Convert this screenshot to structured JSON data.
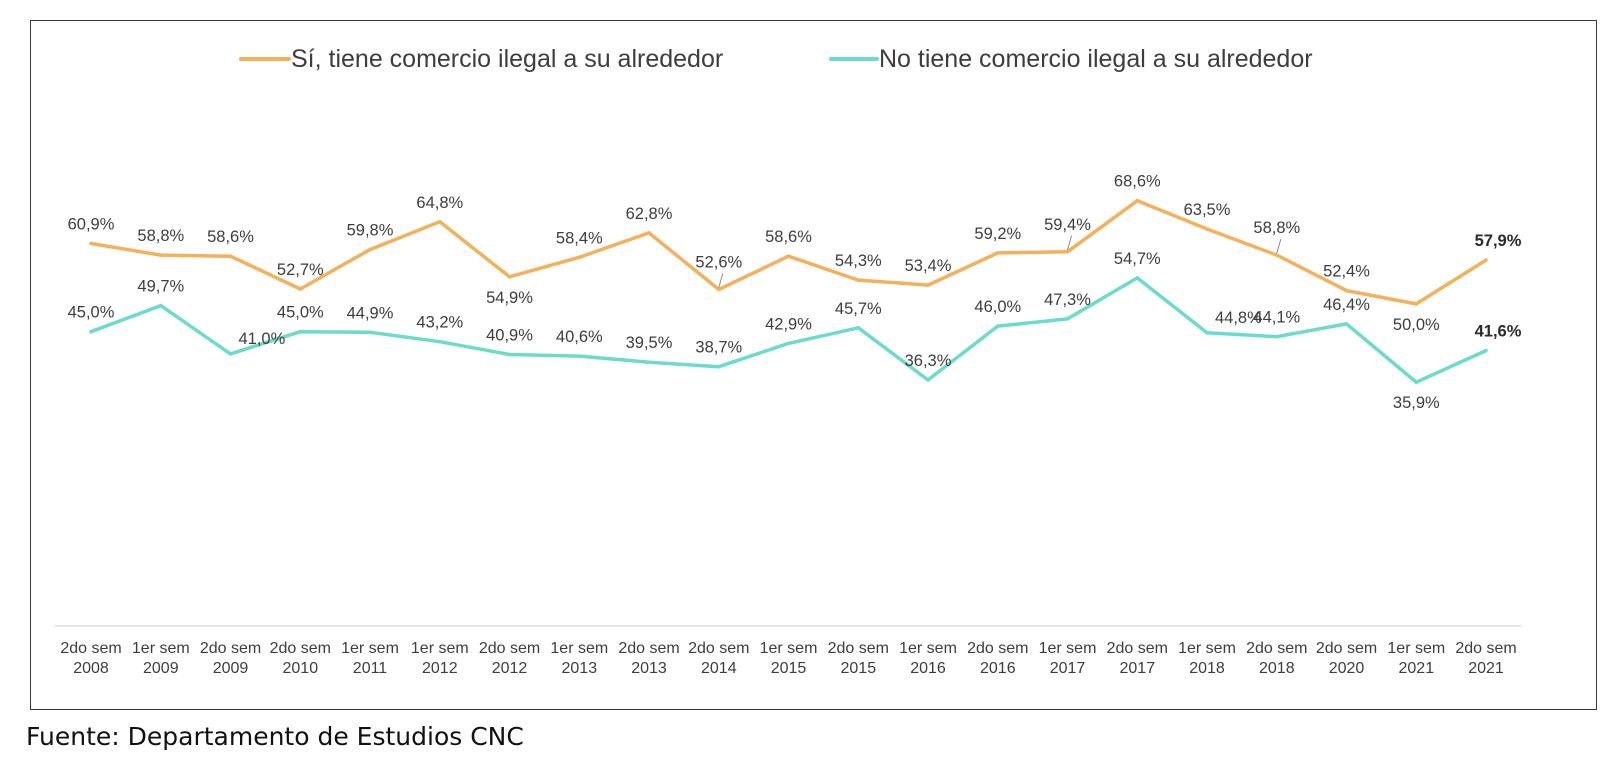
{
  "chart_data": {
    "type": "line",
    "categories": [
      [
        "2do sem",
        "2008"
      ],
      [
        "1er sem",
        "2009"
      ],
      [
        "2do sem",
        "2009"
      ],
      [
        "2do sem",
        "2010"
      ],
      [
        "1er sem",
        "2011"
      ],
      [
        "1er sem",
        "2012"
      ],
      [
        "2do sem",
        "2012"
      ],
      [
        "1er sem",
        "2013"
      ],
      [
        "2do sem",
        "2013"
      ],
      [
        "2do sem",
        "2014"
      ],
      [
        "1er sem",
        "2015"
      ],
      [
        "2do sem",
        "2015"
      ],
      [
        "1er sem",
        "2016"
      ],
      [
        "2do sem",
        "2016"
      ],
      [
        "1er sem",
        "2017"
      ],
      [
        "2do sem",
        "2017"
      ],
      [
        "1er sem",
        "2018"
      ],
      [
        "2do sem",
        "2018"
      ],
      [
        "2do sem",
        "2020"
      ],
      [
        "1er sem",
        "2021"
      ],
      [
        "2do sem",
        "2021"
      ]
    ],
    "series": [
      {
        "name": "Sí, tiene comercio ilegal a su alrededor",
        "color": "#F4B05A",
        "values": [
          60.9,
          58.8,
          58.6,
          52.7,
          59.8,
          64.8,
          54.9,
          58.4,
          62.8,
          52.6,
          58.6,
          54.3,
          53.4,
          59.2,
          59.4,
          68.6,
          63.5,
          58.8,
          52.4,
          50.0,
          57.9
        ],
        "labels": [
          "60,9%",
          "58,8%",
          "58,6%",
          "52,7%",
          "59,8%",
          "64,8%",
          "54,9%",
          "58,4%",
          "62,8%",
          "52,6%",
          "58,6%",
          "54,3%",
          "53,4%",
          "59,2%",
          "59,4%",
          "68,6%",
          "63,5%",
          "58,8%",
          "52,4%",
          "50,0%",
          "57,9%"
        ]
      },
      {
        "name": "No tiene comercio ilegal a su alrededor",
        "color": "#6BDCCB",
        "values": [
          45.0,
          49.7,
          41.0,
          45.0,
          44.9,
          43.2,
          40.9,
          40.6,
          39.5,
          38.7,
          42.9,
          45.7,
          36.3,
          46.0,
          47.3,
          54.7,
          44.8,
          44.1,
          46.4,
          35.9,
          41.6
        ],
        "labels": [
          "45,0%",
          "49,7%",
          "41,0%",
          "45,0%",
          "44,9%",
          "43,2%",
          "40,9%",
          "40,6%",
          "39,5%",
          "38,7%",
          "42,9%",
          "45,7%",
          "36,3%",
          "46,0%",
          "47,3%",
          "54,7%",
          "44,8%",
          "44,1%",
          "46,4%",
          "35,9%",
          "41,6%"
        ]
      }
    ],
    "legend": "top-center",
    "grid": false
  },
  "source_note": "Fuente: Departamento de Estudios CNC"
}
